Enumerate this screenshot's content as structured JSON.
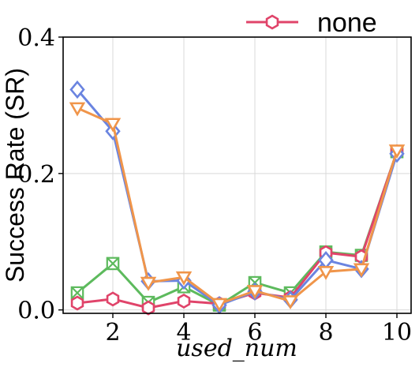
{
  "chart_data": {
    "type": "line",
    "title": "",
    "xlabel": "used_num",
    "ylabel": "Success Rate (SR)",
    "xlim": [
      0.6,
      10.4
    ],
    "ylim": [
      -0.005,
      0.4
    ],
    "xticks": [
      2,
      4,
      6,
      8,
      10
    ],
    "yticks": [
      0.0,
      0.2,
      0.4
    ],
    "ytick_labels": [
      "0.0",
      "0.2",
      "0.4"
    ],
    "x": [
      1,
      2,
      3,
      4,
      5,
      6,
      7,
      8,
      9,
      10
    ],
    "grid": true,
    "legend_placement": "top-right-outside",
    "series": [
      {
        "name": "none",
        "marker": "hexagon",
        "color": "#e0446a",
        "values": [
          0.01,
          0.016,
          0.003,
          0.013,
          0.009,
          0.025,
          0.018,
          0.084,
          0.078,
          0.232
        ],
        "in_legend": true
      },
      {
        "name": "",
        "marker": "cross",
        "color": "#5dba5d",
        "values": [
          0.025,
          0.068,
          0.011,
          0.034,
          0.007,
          0.04,
          0.025,
          0.085,
          0.08,
          0.232
        ],
        "in_legend": false
      },
      {
        "name": "",
        "marker": "diamond",
        "color": "#6a84e0",
        "values": [
          0.323,
          0.262,
          0.042,
          0.043,
          0.007,
          0.027,
          0.015,
          0.073,
          0.06,
          0.229
        ],
        "in_legend": false
      },
      {
        "name": "",
        "marker": "triangle-down",
        "color": "#f0954a",
        "values": [
          0.296,
          0.273,
          0.04,
          0.048,
          0.009,
          0.028,
          0.013,
          0.056,
          0.06,
          0.234
        ],
        "in_legend": false
      }
    ]
  }
}
